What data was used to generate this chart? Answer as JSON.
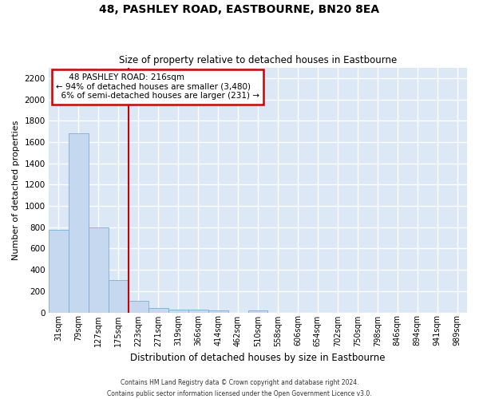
{
  "title1": "48, PASHLEY ROAD, EASTBOURNE, BN20 8EA",
  "title2": "Size of property relative to detached houses in Eastbourne",
  "xlabel": "Distribution of detached houses by size in Eastbourne",
  "ylabel": "Number of detached properties",
  "bar_labels": [
    "31sqm",
    "79sqm",
    "127sqm",
    "175sqm",
    "223sqm",
    "271sqm",
    "319sqm",
    "366sqm",
    "414sqm",
    "462sqm",
    "510sqm",
    "558sqm",
    "606sqm",
    "654sqm",
    "702sqm",
    "750sqm",
    "798sqm",
    "846sqm",
    "894sqm",
    "941sqm",
    "989sqm"
  ],
  "bar_values": [
    775,
    1685,
    795,
    305,
    110,
    40,
    30,
    25,
    20,
    0,
    20,
    0,
    0,
    0,
    0,
    0,
    0,
    0,
    0,
    0,
    0
  ],
  "bar_color": "#c5d8ef",
  "bar_edge_color": "#7bafd4",
  "property_label": "48 PASHLEY ROAD: 216sqm",
  "pct_smaller": 94,
  "num_smaller": 3480,
  "pct_larger": 6,
  "num_larger": 231,
  "vline_color": "#cc0000",
  "ylim": [
    0,
    2300
  ],
  "yticks": [
    0,
    200,
    400,
    600,
    800,
    1000,
    1200,
    1400,
    1600,
    1800,
    2000,
    2200
  ],
  "background_color": "#dce8f5",
  "grid_color": "#ffffff",
  "footer1": "Contains HM Land Registry data © Crown copyright and database right 2024.",
  "footer2": "Contains public sector information licensed under the Open Government Licence v3.0."
}
